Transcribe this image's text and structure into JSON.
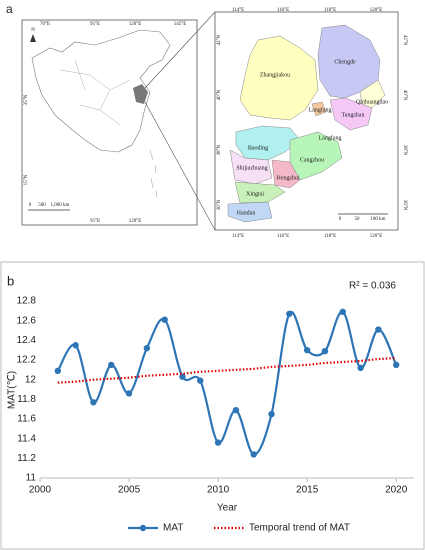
{
  "map": {
    "label": "a",
    "china": {
      "north": "N",
      "top_ticks": [
        "70°E",
        "95°E",
        "120°E",
        "145°E"
      ],
      "bottom_ticks": [
        "95°E",
        "120°E"
      ],
      "left_ticks": [
        "35°N",
        "15°N"
      ],
      "scale": [
        "0",
        "500",
        "1,000 km"
      ]
    },
    "hebei": {
      "top_ticks": [
        "114°E",
        "116°E",
        "118°E",
        "120°E"
      ],
      "bottom_ticks": [
        "114°E",
        "116°E",
        "118°E",
        "120°E"
      ],
      "left_ticks": [
        "42°N",
        "40°N",
        "38°N",
        "36°N"
      ],
      "right_ticks": [
        "42°N",
        "40°N",
        "38°N",
        "36°N"
      ],
      "cities": [
        "Zhangjiakou",
        "Chengde",
        "Qinhuangdao",
        "Tangshan",
        "Langfang",
        "Langfang",
        "Baoding",
        "Cangzhou",
        "Shijiazhuang",
        "Hengshui",
        "Xingtai",
        "Handan"
      ],
      "scale": [
        "0",
        "50",
        "100 km"
      ]
    }
  },
  "chart_data": {
    "type": "line",
    "label": "b",
    "annotation": "R² = 0.036",
    "ylabel": "MAT(℃)",
    "xlabel": "Year",
    "x": [
      2001,
      2002,
      2003,
      2004,
      2005,
      2006,
      2007,
      2008,
      2009,
      2010,
      2011,
      2012,
      2013,
      2014,
      2015,
      2016,
      2017,
      2018,
      2019,
      2020
    ],
    "series": [
      {
        "name": "MAT",
        "color": "#2e75b6",
        "style": "smooth-markers",
        "values": [
          12.09,
          12.35,
          11.77,
          12.15,
          11.86,
          12.32,
          12.61,
          12.03,
          11.99,
          11.36,
          11.69,
          11.24,
          11.65,
          12.67,
          12.3,
          12.29,
          12.69,
          12.12,
          12.51,
          12.15
        ]
      },
      {
        "name": "Temporal trend of MAT",
        "color": "#e00000",
        "style": "dotted",
        "values": [
          11.97,
          11.98,
          12.0,
          12.01,
          12.02,
          12.04,
          12.05,
          12.06,
          12.08,
          12.09,
          12.1,
          12.11,
          12.13,
          12.14,
          12.15,
          12.17,
          12.18,
          12.19,
          12.21,
          12.22
        ]
      }
    ],
    "xlim": [
      2000,
      2021
    ],
    "xticks": [
      2000,
      2005,
      2010,
      2015,
      2020
    ],
    "ylim": [
      11,
      12.8
    ],
    "yticks": [
      11,
      11.2,
      11.4,
      11.6,
      11.8,
      12,
      12.2,
      12.4,
      12.6,
      12.8
    ],
    "legend": "bottom"
  }
}
